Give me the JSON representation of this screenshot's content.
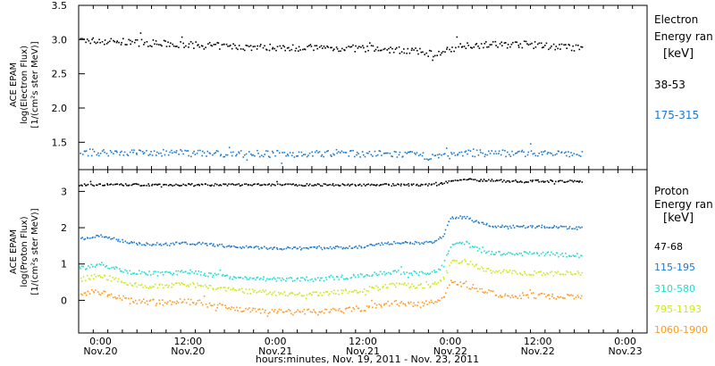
{
  "figure": {
    "xlabel": "hours:minutes, Nov. 19, 2011 - Nov. 23, 2011",
    "x_ticks": [
      {
        "time": "0:00",
        "date": "Nov.20",
        "hour": 4
      },
      {
        "time": "12:00",
        "date": "Nov.20",
        "hour": 16
      },
      {
        "time": "0:00",
        "date": "Nov.21",
        "hour": 28
      },
      {
        "time": "12:00",
        "date": "Nov.21",
        "hour": 40
      },
      {
        "time": "0:00",
        "date": "Nov.22",
        "hour": 52
      },
      {
        "time": "12:00",
        "date": "Nov.22",
        "hour": 64
      },
      {
        "time": "0:00",
        "date": "Nov.23",
        "hour": 76
      }
    ],
    "xlim_hours": [
      1,
      79
    ],
    "data_hour_range": [
      1,
      70
    ]
  },
  "chart_data": [
    {
      "type": "scatter",
      "panel": "electron",
      "ylabel": [
        "ACE EPAM",
        "log(Electron Flux)",
        "[1/(cm²s ster MeV)]"
      ],
      "ylim": [
        1.1,
        3.5
      ],
      "yticks": [
        {
          "label": "3.5",
          "value": 3.5
        },
        {
          "label": "3.0",
          "value": 3.0
        },
        {
          "label": "2.5",
          "value": 2.5
        },
        {
          "label": "2.0",
          "value": 2.0
        },
        {
          "label": "1.5",
          "value": 1.5
        }
      ],
      "legend_title": [
        "Electron",
        "Energy ran",
        "[keV]"
      ],
      "x_hours": [
        1,
        8,
        16,
        24,
        32,
        40,
        46,
        50,
        54,
        62,
        70
      ],
      "series": [
        {
          "name": "38-53",
          "color": "#000000",
          "values": [
            3.0,
            2.97,
            2.93,
            2.9,
            2.89,
            2.88,
            2.85,
            2.8,
            2.93,
            2.94,
            2.88
          ],
          "scatter": 0.05
        },
        {
          "name": "175-315",
          "color": "#1a7ad0",
          "values": [
            1.36,
            1.36,
            1.35,
            1.34,
            1.34,
            1.34,
            1.33,
            1.29,
            1.35,
            1.35,
            1.33
          ],
          "scatter": 0.05
        }
      ]
    },
    {
      "type": "scatter",
      "panel": "proton",
      "ylabel": [
        "ACE EPAM",
        "log(Proton Flux)",
        "[1/(cm²s ster MeV)]"
      ],
      "ylim": [
        -0.9,
        3.6
      ],
      "yticks": [
        {
          "label": "3",
          "value": 3
        },
        {
          "label": "2",
          "value": 2
        },
        {
          "label": "1",
          "value": 1
        },
        {
          "label": "0",
          "value": 0
        }
      ],
      "legend_title": [
        "Proton",
        "Energy ran",
        "[keV]"
      ],
      "x_hours": [
        1,
        4,
        8,
        12,
        16,
        22,
        28,
        34,
        40,
        44,
        48,
        50,
        51,
        52,
        54,
        56,
        58,
        60,
        64,
        70
      ],
      "series": [
        {
          "name": "47-68",
          "color": "#000000",
          "values": [
            3.2,
            3.2,
            3.2,
            3.2,
            3.2,
            3.2,
            3.2,
            3.2,
            3.2,
            3.2,
            3.2,
            3.2,
            3.25,
            3.3,
            3.35,
            3.33,
            3.32,
            3.3,
            3.3,
            3.3
          ],
          "scatter": 0.03
        },
        {
          "name": "115-195",
          "color": "#1a7ad0",
          "values": [
            1.7,
            1.8,
            1.6,
            1.55,
            1.6,
            1.5,
            1.45,
            1.45,
            1.5,
            1.6,
            1.6,
            1.65,
            1.8,
            2.3,
            2.3,
            2.15,
            2.05,
            2.05,
            2.05,
            2.0
          ],
          "scatter": 0.04
        },
        {
          "name": "310-580",
          "color": "#22dcd0",
          "values": [
            0.9,
            1.0,
            0.8,
            0.75,
            0.8,
            0.65,
            0.6,
            0.6,
            0.7,
            0.8,
            0.75,
            0.8,
            1.0,
            1.55,
            1.6,
            1.4,
            1.3,
            1.3,
            1.3,
            1.25
          ],
          "scatter": 0.06
        },
        {
          "name": "795-1193",
          "color": "#ccea1a",
          "values": [
            0.6,
            0.7,
            0.45,
            0.4,
            0.45,
            0.3,
            0.2,
            0.2,
            0.3,
            0.45,
            0.4,
            0.45,
            0.6,
            1.05,
            1.1,
            0.9,
            0.8,
            0.8,
            0.75,
            0.75
          ],
          "scatter": 0.07
        },
        {
          "name": "1060-1900",
          "color": "#ff9a22",
          "values": [
            0.15,
            0.25,
            0.0,
            -0.05,
            0.0,
            -0.2,
            -0.3,
            -0.3,
            -0.2,
            -0.05,
            -0.1,
            0.0,
            0.15,
            0.5,
            0.45,
            0.3,
            0.2,
            0.15,
            0.15,
            0.1
          ],
          "scatter": 0.08
        }
      ]
    }
  ]
}
